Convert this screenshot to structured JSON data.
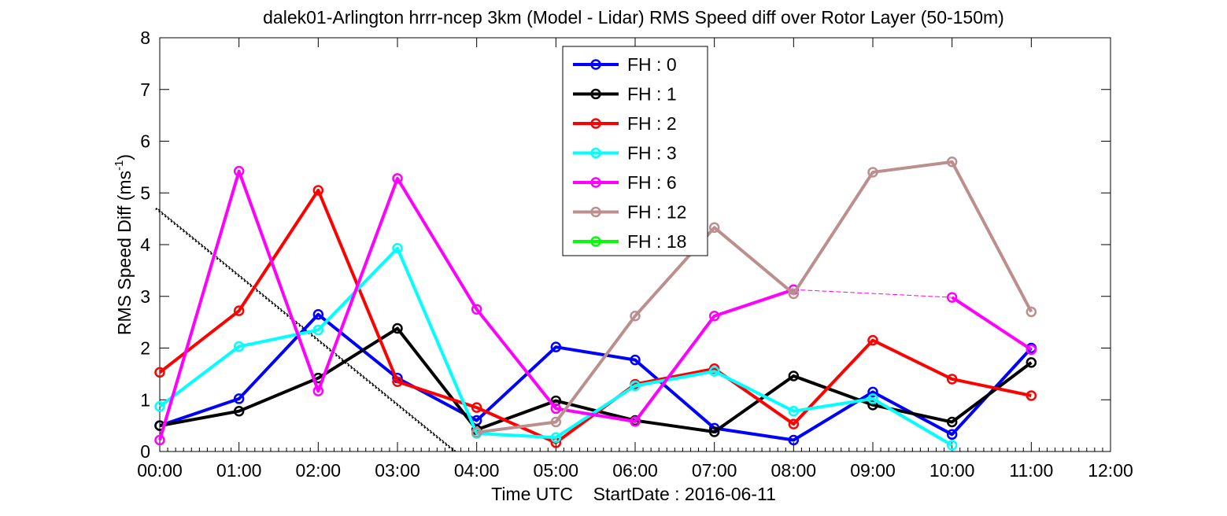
{
  "chart_data": {
    "type": "line",
    "title": "dalek01-Arlington hrrr-ncep 3km (Model - Lidar) RMS Speed diff over Rotor Layer (50-150m)",
    "xlabel": "Time UTC    StartDate : 2016-06-11",
    "ylabel_main": "RMS Speed Diff (ms",
    "ylabel_sup": "-1",
    "ylabel_end": ")",
    "xlim": [
      0,
      12
    ],
    "ylim": [
      0,
      8
    ],
    "x_ticks": [
      0,
      1,
      2,
      3,
      4,
      5,
      6,
      7,
      8,
      9,
      10,
      11,
      12
    ],
    "x_tick_labels": [
      "00:00",
      "01:00",
      "02:00",
      "03:00",
      "04:00",
      "05:00",
      "06:00",
      "07:00",
      "08:00",
      "09:00",
      "10:00",
      "11:00",
      "12:00"
    ],
    "y_ticks": [
      0,
      1,
      2,
      3,
      4,
      5,
      6,
      7,
      8
    ],
    "y_tick_labels": [
      "0",
      "1",
      "2",
      "3",
      "4",
      "5",
      "6",
      "7",
      "8"
    ],
    "legend_position": "top-center",
    "series": [
      {
        "name": "FH : 0",
        "color": "#0000ff",
        "x": [
          0,
          1,
          2,
          3,
          4,
          5,
          6,
          7,
          8,
          9,
          10,
          11
        ],
        "y": [
          0.5,
          1.02,
          2.65,
          1.42,
          0.6,
          2.02,
          1.77,
          0.45,
          0.22,
          1.15,
          0.33,
          2.0
        ],
        "style": "solid"
      },
      {
        "name": "FH : 1",
        "color": "#000000",
        "x": [
          0,
          1,
          2,
          3,
          4,
          5,
          6,
          7,
          8,
          9,
          10,
          11
        ],
        "y": [
          0.5,
          0.78,
          1.42,
          2.38,
          0.42,
          0.98,
          0.6,
          0.38,
          1.46,
          0.9,
          0.57,
          1.72
        ],
        "style": "solid"
      },
      {
        "name": "FH : 2",
        "color": "#ff0000",
        "x": [
          0,
          1,
          2,
          3,
          4,
          5,
          6,
          7,
          8,
          9,
          10,
          11
        ],
        "y": [
          1.53,
          2.72,
          5.05,
          1.35,
          0.85,
          0.17,
          1.3,
          1.6,
          0.53,
          2.15,
          1.4,
          1.08
        ],
        "style": "solid"
      },
      {
        "name": "FH : 3",
        "color": "#00ffff",
        "x": [
          0,
          1,
          2,
          3,
          4,
          5,
          6,
          7,
          8,
          9,
          10
        ],
        "y": [
          0.87,
          2.03,
          2.35,
          3.93,
          0.35,
          0.27,
          1.27,
          1.55,
          0.78,
          1.02,
          0.12
        ],
        "style": "solid"
      },
      {
        "name": "FH : 6",
        "color": "#ff00ff",
        "x": [
          0,
          1,
          2,
          3,
          4,
          5,
          6,
          7,
          8
        ],
        "y": [
          0.22,
          5.42,
          1.17,
          5.28,
          2.75,
          0.83,
          0.58,
          2.62,
          3.13
        ],
        "style": "solid"
      },
      {
        "name": "FH : 6 (gap)",
        "color": "#ff00ff",
        "x": [
          8,
          10,
          11
        ],
        "y": [
          3.13,
          2.98,
          1.97
        ],
        "style": "dashed-partial"
      },
      {
        "name": "FH : 12",
        "color": "#bc8f8f",
        "x": [
          4,
          5,
          6,
          7,
          8,
          9,
          10,
          11
        ],
        "y": [
          0.37,
          0.57,
          2.62,
          4.33,
          3.05,
          5.4,
          5.6,
          2.7
        ],
        "style": "solid"
      },
      {
        "name": "FH : 18",
        "color": "#00ff00",
        "x": [],
        "y": [],
        "style": "solid"
      }
    ],
    "reference_line": {
      "color": "#000000",
      "style": "dotted",
      "x": [
        -0.05,
        3.72
      ],
      "y": [
        4.7,
        0
      ]
    },
    "legend": [
      {
        "label": "FH : 0",
        "color": "#0000ff"
      },
      {
        "label": "FH : 1",
        "color": "#000000"
      },
      {
        "label": "FH : 2",
        "color": "#ff0000"
      },
      {
        "label": "FH : 3",
        "color": "#00ffff"
      },
      {
        "label": "FH : 6",
        "color": "#ff00ff"
      },
      {
        "label": "FH : 12",
        "color": "#bc8f8f"
      },
      {
        "label": "FH : 18",
        "color": "#00ff00"
      }
    ]
  }
}
